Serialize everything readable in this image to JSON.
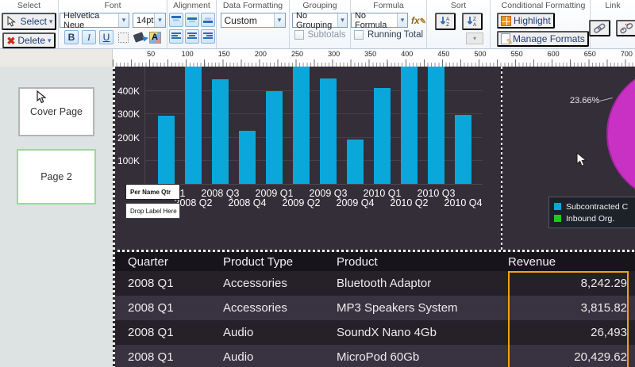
{
  "toolbar": {
    "group_labels": {
      "select": "Select",
      "font": "Font",
      "alignment": "Alignment",
      "data_formatting": "Data Formatting",
      "grouping": "Grouping",
      "formula": "Formula",
      "sort": "Sort",
      "conditional_formatting": "Conditional Formatting",
      "link": "Link"
    },
    "select": {
      "select_label": "Select",
      "delete_label": "Delete"
    },
    "font": {
      "family": "Helvetica Neue",
      "size": "14pt",
      "bold": "B",
      "italic": "I",
      "underline": "U"
    },
    "data_formatting": {
      "value": "Custom"
    },
    "grouping": {
      "value": "No Grouping",
      "subtotals_label": "Subtotals"
    },
    "formula": {
      "value": "No Formula",
      "running_total_label": "Running Total"
    },
    "conditional_formatting": {
      "highlight_label": "Highlight",
      "manage_formats_label": "Manage Formats"
    }
  },
  "ruler": {
    "ticks": [
      50,
      100,
      150,
      200,
      250,
      300,
      350,
      400,
      450,
      500,
      550,
      600,
      650,
      700
    ]
  },
  "sidebar": {
    "pages": [
      {
        "label": "Cover Page",
        "selected": false
      },
      {
        "label": "Page 2",
        "selected": true
      }
    ]
  },
  "popup": {
    "line1": "Per Name Qtr",
    "line2": "Drop Label Here"
  },
  "chart_data": [
    {
      "type": "bar",
      "title": "",
      "categories": [
        "2008 Q1",
        "2008 Q2",
        "2008 Q3",
        "2008 Q4",
        "2009 Q1",
        "2009 Q2",
        "2009 Q3",
        "2009 Q4",
        "2010 Q1",
        "2010 Q2",
        "2010 Q3",
        "2010 Q4"
      ],
      "series": [
        {
          "name": "Revenue",
          "values_thousands": [
            290,
            500,
            445,
            225,
            395,
            500,
            450,
            190,
            410,
            500,
            500,
            295
          ]
        }
      ],
      "y_tick_labels": [
        "100K",
        "200K",
        "300K",
        "400K"
      ],
      "y_tick_values_thousands": [
        100,
        200,
        300,
        400
      ],
      "ylim_thousands": [
        0,
        500
      ],
      "bar_color": "#0AA7DB",
      "grid": true
    },
    {
      "type": "pie",
      "slices": [
        {
          "label": "23.66%",
          "value": 23.66,
          "color": "#C931C4"
        }
      ],
      "annotation": "23.66%",
      "legend_position": "bottom-right",
      "legend": [
        {
          "label": "Subcontracted C",
          "color": "#0AA7DB"
        },
        {
          "label": "Inbound Org.",
          "color": "#1ECB1E"
        }
      ]
    }
  ],
  "table": {
    "columns": [
      "Quarter",
      "Product Type",
      "Product",
      "Revenue"
    ],
    "rows": [
      [
        "2008 Q1",
        "Accessories",
        "Bluetooth Adaptor",
        "8,242.29"
      ],
      [
        "2008 Q1",
        "Accessories",
        "MP3 Speakers System",
        "3,815.82"
      ],
      [
        "2008 Q1",
        "Audio",
        "SoundX Nano 4Gb",
        "26,493"
      ],
      [
        "2008 Q1",
        "Audio",
        "MicroPod 60Gb",
        "20,429.62"
      ]
    ],
    "highlighted_column": "Revenue",
    "highlight_color": "#F2A30F"
  },
  "colors": {
    "bar": "#0AA7DB",
    "pie_slice": "#C931C4",
    "highlight_border": "#F2A30F",
    "canvas_bg": "#332E37",
    "legend_green": "#1ECB1E",
    "legend_cyan": "#0AA7DB"
  }
}
